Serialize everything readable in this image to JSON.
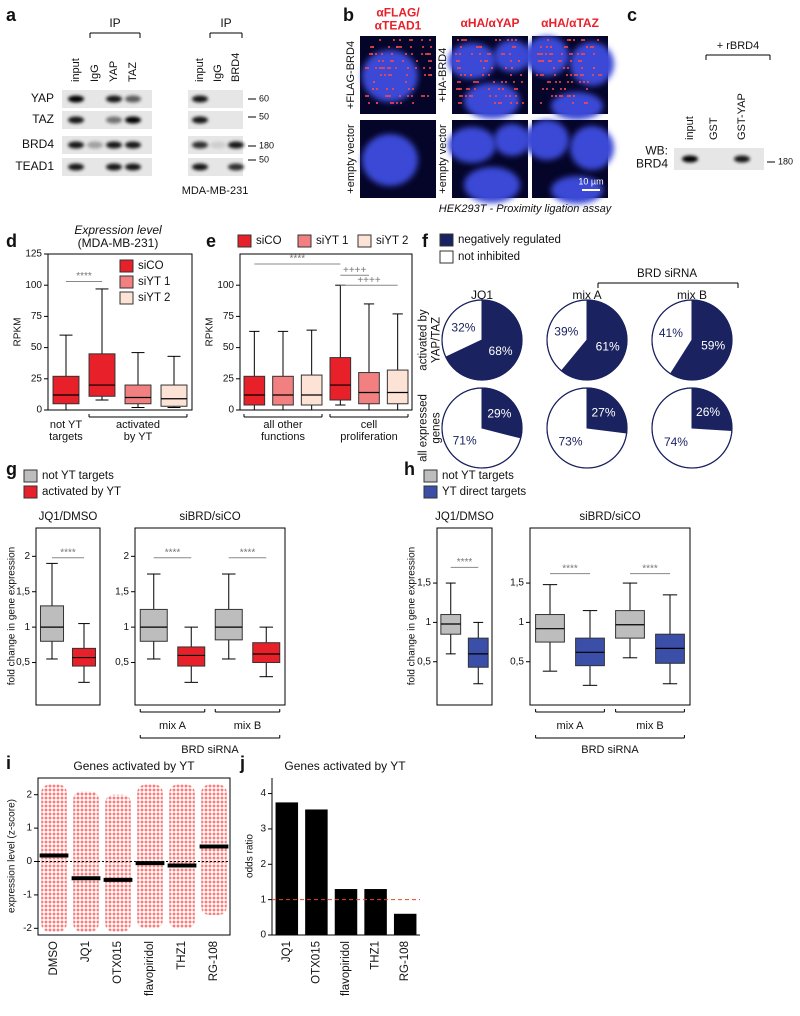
{
  "panel_a": {
    "letter": "a",
    "ip_label": "IP",
    "lanes_left": [
      "input",
      "IgG",
      "YAP",
      "TAZ"
    ],
    "rows": [
      "YAP",
      "TAZ",
      "BRD4",
      "TEAD1"
    ],
    "ip_label_right": "IP",
    "lanes_right": [
      "input",
      "IgG",
      "BRD4"
    ],
    "markers": [
      "60",
      "50",
      "180",
      "50"
    ],
    "cell_line": "MDA-MB-231"
  },
  "panel_b": {
    "letter": "b",
    "columns": [
      "αFLAG/ αTEAD1",
      "αHA/αYAP",
      "αHA/αTAZ"
    ],
    "rows_left": [
      "+FLAG-BRD4",
      "+empty vector"
    ],
    "rows_mid": [
      "+HA-BRD4",
      "+empty vector"
    ],
    "scale": "10 µm",
    "caption": "HEK293T - Proximity ligation assay"
  },
  "panel_c": {
    "letter": "c",
    "treatment": "+ rBRD4",
    "lanes": [
      "input",
      "GST",
      "GST-YAP"
    ],
    "row": "WB: BRD4",
    "marker": "180"
  },
  "chart_data": [
    {
      "type": "box",
      "panel": "d",
      "title": "Expression level",
      "subtitle": "(MDA-MB-231)",
      "ylabel": "RPKM",
      "ylim": [
        0,
        125
      ],
      "yticks": [
        0,
        25,
        50,
        75,
        100,
        125
      ],
      "series": [
        {
          "name": "siCO",
          "color": "#e8202a"
        },
        {
          "name": "siYT 1",
          "color": "#f28080"
        },
        {
          "name": "siYT 2",
          "color": "#fde3d6"
        }
      ],
      "subplots": [
        {
          "categories": [
            "not YT targets",
            "activated by YT"
          ],
          "boxes": [
            [
              {
                "min": 0,
                "q1": 5,
                "median": 12,
                "q3": 27,
                "max": 60
              },
              {
                "min": 8,
                "q1": 11,
                "median": 20,
                "q3": 45,
                "max": 97
              }
            ],
            [
              null,
              {
                "min": 2,
                "q1": 5,
                "median": 10,
                "q3": 20,
                "max": 46
              }
            ],
            [
              null,
              {
                "min": 2,
                "q1": 3,
                "median": 9,
                "q3": 20,
                "max": 43
              }
            ]
          ],
          "annotations": [
            "****"
          ]
        }
      ]
    },
    {
      "type": "box",
      "panel": "e",
      "ylabel": "RPKM",
      "ylim": [
        0,
        125
      ],
      "yticks": [
        0,
        25,
        50,
        75,
        100
      ],
      "series": [
        {
          "name": "siCO",
          "color": "#e8202a"
        },
        {
          "name": "siYT 1",
          "color": "#f28080"
        },
        {
          "name": "siYT 2",
          "color": "#fde3d6"
        }
      ],
      "subplots": [
        {
          "categories": [
            "all other functions",
            "cell proliferation"
          ],
          "boxes": [
            [
              {
                "min": 0,
                "q1": 4,
                "median": 12,
                "q3": 27,
                "max": 63
              },
              {
                "min": 4,
                "q1": 8,
                "median": 20,
                "q3": 42,
                "max": 100
              }
            ],
            [
              {
                "min": 0,
                "q1": 4,
                "median": 12,
                "q3": 27,
                "max": 63
              },
              {
                "min": 0,
                "q1": 5,
                "median": 14,
                "q3": 30,
                "max": 85
              }
            ],
            [
              {
                "min": 0,
                "q1": 4,
                "median": 12,
                "q3": 28,
                "max": 64
              },
              {
                "min": 0,
                "q1": 5,
                "median": 14,
                "q3": 32,
                "max": 77
              }
            ]
          ],
          "annotations": [
            "****",
            "++++",
            "++++"
          ]
        }
      ]
    },
    {
      "type": "pie",
      "panel": "f",
      "series": [
        {
          "name": "negatively regulated",
          "color": "#1a2260"
        },
        {
          "name": "not inhibited",
          "color": "#ffffff"
        }
      ],
      "group_label": "BRD siRNA",
      "columns": [
        "JQ1",
        "mix A",
        "mix B"
      ],
      "rows": [
        "activated by YAP/TAZ",
        "all expressed genes"
      ],
      "pies": [
        [
          {
            "values": [
              68,
              32
            ],
            "value_labels": [
              "68%",
              "32%"
            ]
          },
          {
            "values": [
              61,
              39
            ],
            "value_labels": [
              "61%",
              "39%"
            ]
          },
          {
            "values": [
              59,
              41
            ],
            "value_labels": [
              "59%",
              "41%"
            ]
          }
        ],
        [
          {
            "values": [
              29,
              71
            ],
            "value_labels": [
              "29%",
              "71%"
            ]
          },
          {
            "values": [
              27,
              73
            ],
            "value_labels": [
              "27%",
              "73%"
            ]
          },
          {
            "values": [
              26,
              74
            ],
            "value_labels": [
              "26%",
              "74%"
            ]
          }
        ]
      ]
    },
    {
      "type": "box",
      "panel": "g",
      "ylabel": "fold change in gene expression",
      "ylim": [
        -0.1,
        2.4
      ],
      "yticks": [
        {
          "value": 0.5,
          "label": "0,5"
        },
        1,
        {
          "value": 1.5,
          "label": "1,5"
        },
        2
      ],
      "series": [
        {
          "name": "not YT targets",
          "color": "#bdbdbd"
        },
        {
          "name": "activated by YT",
          "color": "#e8202a"
        }
      ],
      "subplots": [
        {
          "title": "JQ1/DMSO",
          "categories": [
            null
          ],
          "boxes": [
            [
              {
                "min": 0.55,
                "q1": 0.8,
                "median": 1.0,
                "q3": 1.3,
                "max": 1.9
              }
            ],
            [
              {
                "min": 0.22,
                "q1": 0.45,
                "median": 0.57,
                "q3": 0.7,
                "max": 1.05
              }
            ]
          ],
          "annotations": [
            "****"
          ]
        },
        {
          "title": "siBRD/siCO",
          "categories": [
            "mix A",
            "mix B"
          ],
          "group_label": "BRD siRNA",
          "boxes": [
            [
              {
                "min": 0.55,
                "q1": 0.8,
                "median": 1.0,
                "q3": 1.25,
                "max": 1.75
              },
              {
                "min": 0.55,
                "q1": 0.82,
                "median": 1.0,
                "q3": 1.25,
                "max": 1.75
              }
            ],
            [
              {
                "min": 0.22,
                "q1": 0.45,
                "median": 0.6,
                "q3": 0.72,
                "max": 1.0
              },
              {
                "min": 0.3,
                "q1": 0.5,
                "median": 0.62,
                "q3": 0.78,
                "max": 1.0
              }
            ]
          ],
          "annotations": [
            "****",
            "****"
          ]
        }
      ]
    },
    {
      "type": "box",
      "panel": "h",
      "ylabel": "fold change in gene expression",
      "ylim": [
        -0.05,
        2.2
      ],
      "yticks": [
        {
          "value": 0.5,
          "label": "0,5"
        },
        1,
        {
          "value": 1.5,
          "label": "1,5"
        }
      ],
      "series": [
        {
          "name": "not YT targets",
          "color": "#bdbdbd"
        },
        {
          "name": "YT direct targets",
          "color": "#3b4fa8"
        }
      ],
      "subplots": [
        {
          "title": "JQ1/DMSO",
          "categories": [
            null
          ],
          "boxes": [
            [
              {
                "min": 0.6,
                "q1": 0.85,
                "median": 0.98,
                "q3": 1.1,
                "max": 1.5
              }
            ],
            [
              {
                "min": 0.22,
                "q1": 0.43,
                "median": 0.6,
                "q3": 0.8,
                "max": 1.0
              }
            ]
          ],
          "annotations": [
            "****"
          ]
        },
        {
          "title": "siBRD/siCO",
          "categories": [
            "mix A",
            "mix B"
          ],
          "group_label": "BRD siRNA",
          "boxes": [
            [
              {
                "min": 0.38,
                "q1": 0.75,
                "median": 0.92,
                "q3": 1.1,
                "max": 1.48
              },
              {
                "min": 0.55,
                "q1": 0.8,
                "median": 0.97,
                "q3": 1.15,
                "max": 1.5
              }
            ],
            [
              {
                "min": 0.2,
                "q1": 0.45,
                "median": 0.62,
                "q3": 0.8,
                "max": 1.15
              },
              {
                "min": 0.22,
                "q1": 0.48,
                "median": 0.67,
                "q3": 0.85,
                "max": 1.35
              }
            ]
          ],
          "annotations": [
            "****",
            "****"
          ]
        }
      ]
    },
    {
      "type": "strip",
      "panel": "i",
      "title": "Genes activated by YT",
      "ylabel": "expression level (z-score)",
      "categories": [
        "DMSO",
        "JQ1",
        "OTX015",
        "flavopiridol",
        "THZ1",
        "RG-108"
      ],
      "values": [
        0.18,
        -0.5,
        -0.55,
        -0.05,
        -0.12,
        0.45
      ],
      "ranges": [
        [
          -2.1,
          2.3
        ],
        [
          -2.1,
          2.1
        ],
        [
          -2.1,
          2.0
        ],
        [
          -2.0,
          2.3
        ],
        [
          -2.0,
          2.3
        ],
        [
          -1.6,
          2.3
        ]
      ],
      "color": "#f28080",
      "ylim": [
        -2.2,
        2.5
      ],
      "yticks": [
        -2,
        -1,
        0,
        1,
        2
      ],
      "hline": 0
    },
    {
      "type": "bar",
      "panel": "j",
      "title": "Genes activated by YT",
      "ylabel": "odds ratio",
      "categories": [
        "JQ1",
        "OTX015",
        "flavopiridol",
        "THZ1",
        "RG-108"
      ],
      "values": [
        3.75,
        3.55,
        1.3,
        1.3,
        0.6
      ],
      "color": "#000000",
      "ylim": [
        0,
        4.44
      ],
      "yticks": [
        0,
        1,
        2,
        3,
        4
      ],
      "hline": 1,
      "hline_color": "#e8452a"
    }
  ]
}
